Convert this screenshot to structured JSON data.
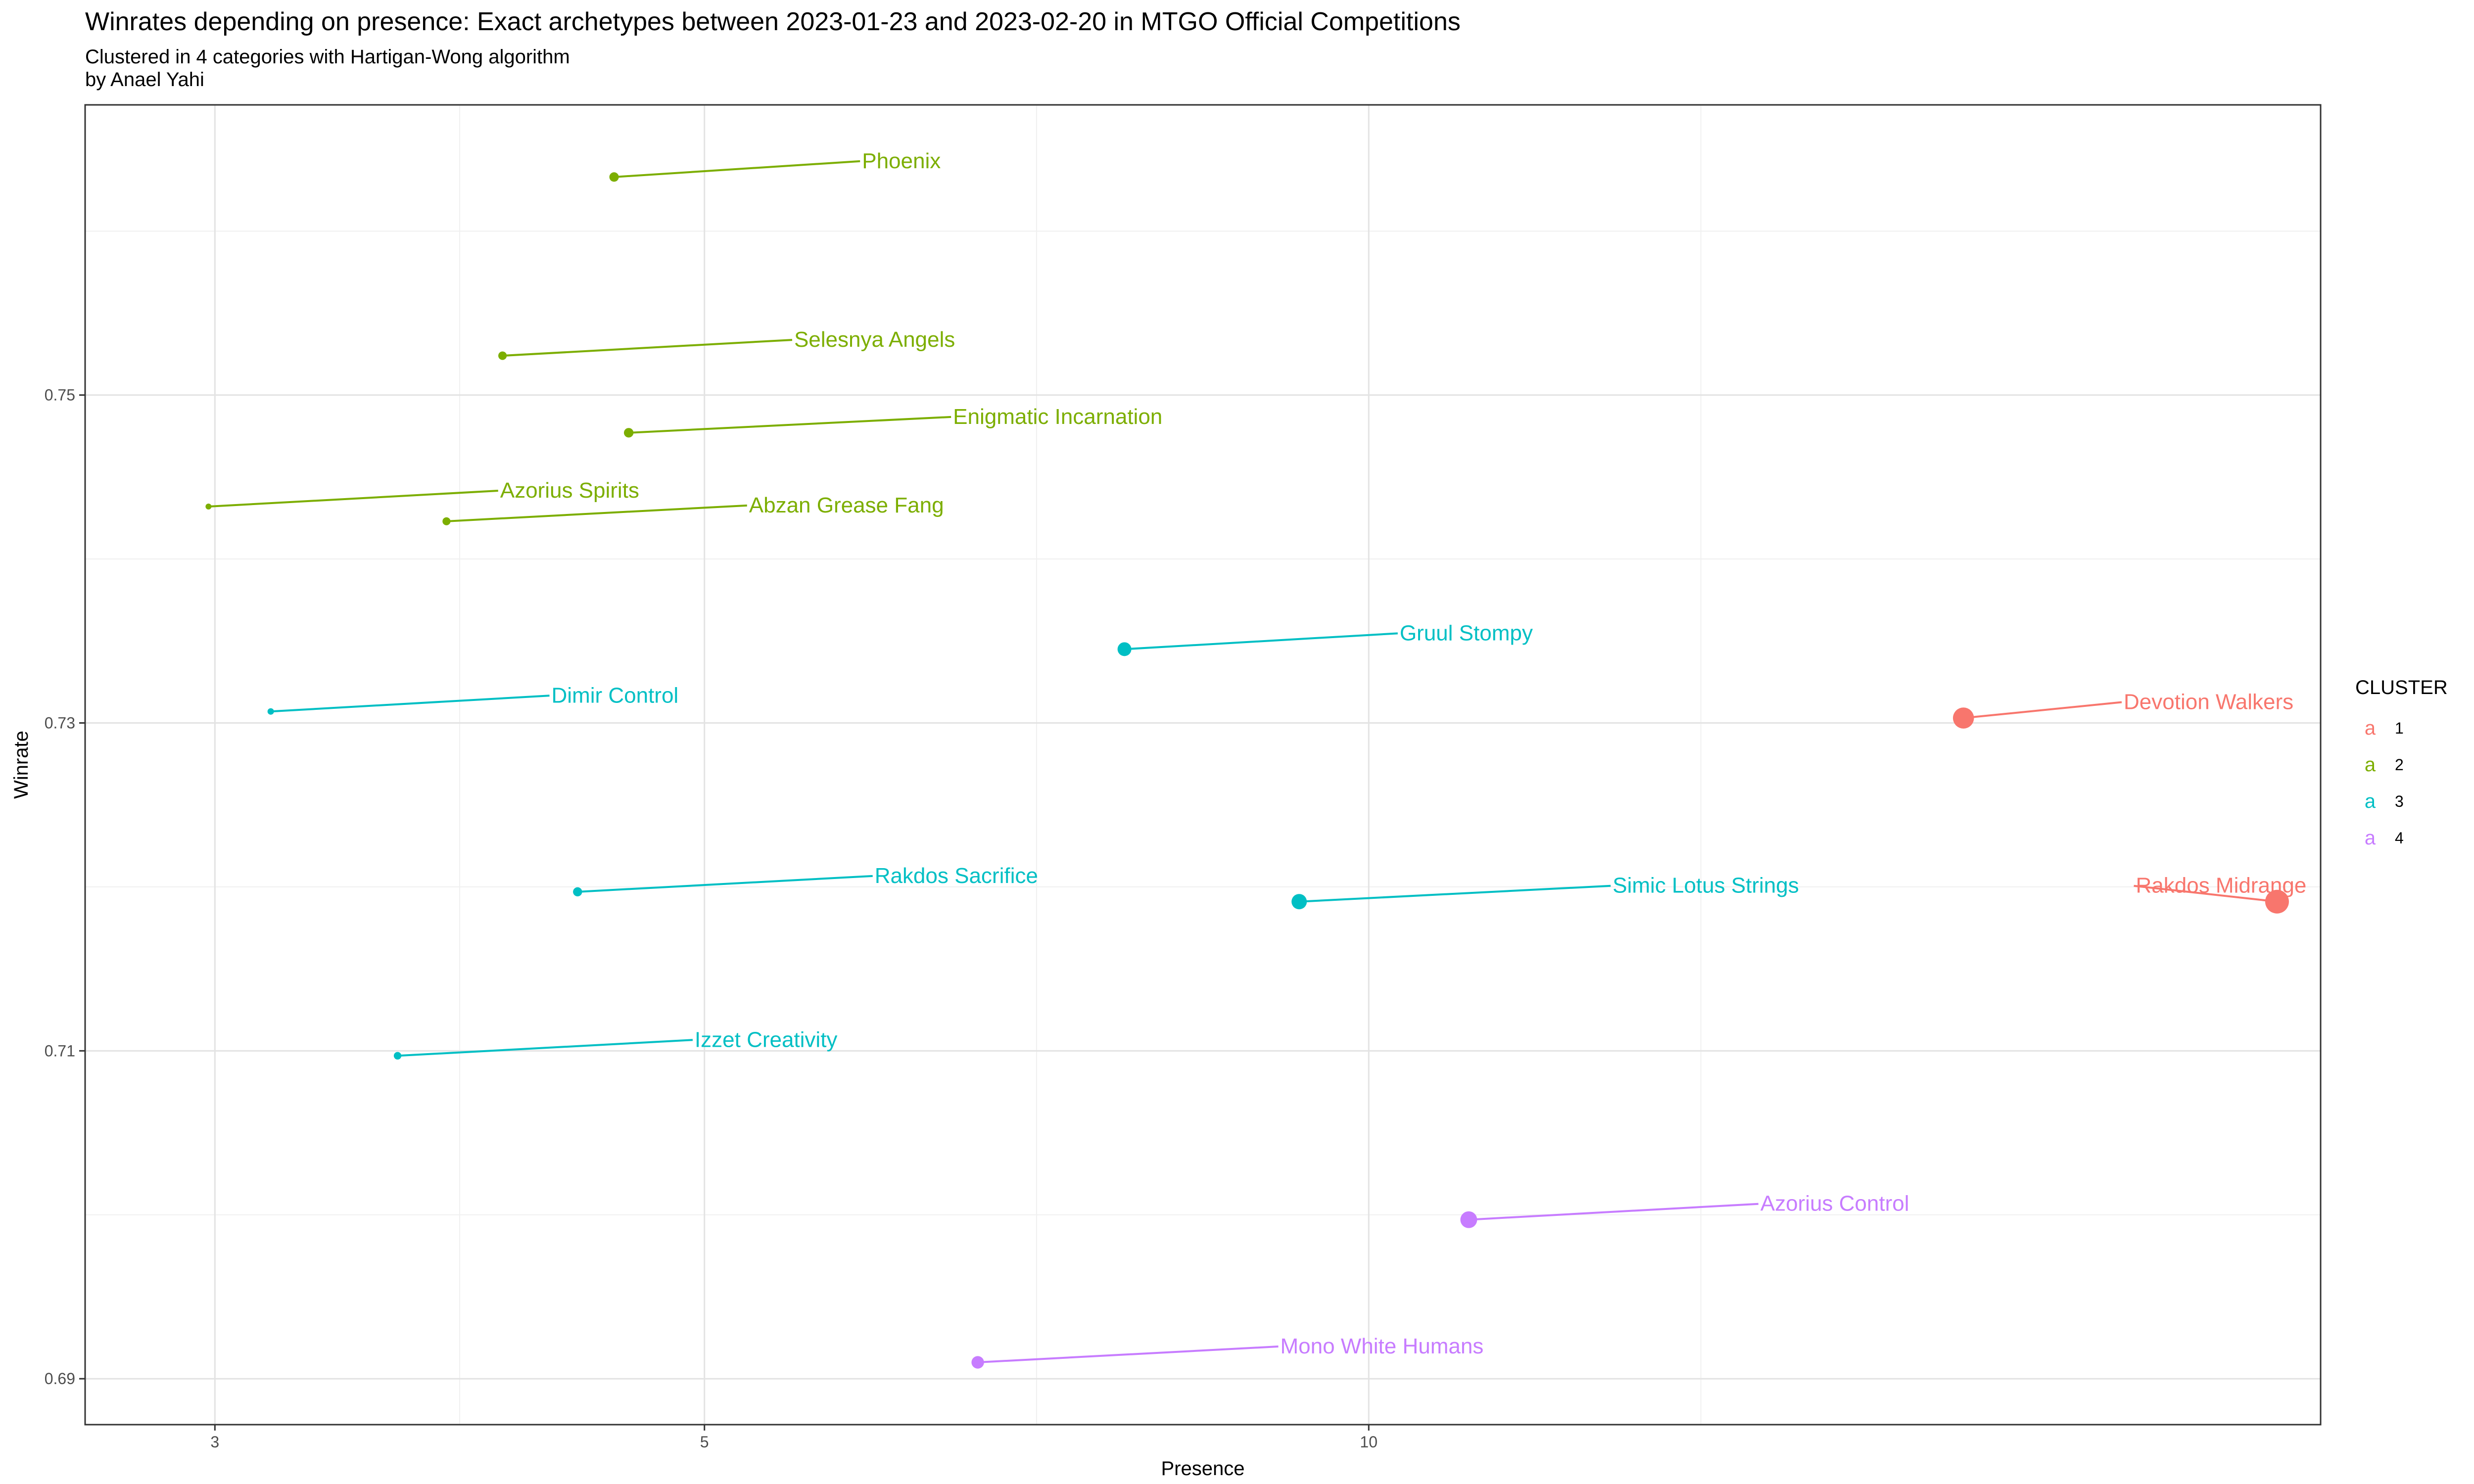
{
  "chart_data": {
    "type": "scatter",
    "title": "Winrates depending on presence: Exact archetypes  between 2023-01-23 and 2023-02-20 in MTGO Official Competitions",
    "subtitle_lines": [
      "Clustered in 4 categories with Hartigan-Wong algorithm",
      "by Anael Yahi"
    ],
    "xlabel": "Presence",
    "ylabel": "Winrate",
    "x_scale": "log",
    "xlim": [
      2.62,
      27.0
    ],
    "ylim": [
      0.6872,
      0.7677
    ],
    "x_ticks": [
      3,
      5,
      10
    ],
    "x_tick_labels": [
      "3",
      "5",
      "10"
    ],
    "y_ticks": [
      0.69,
      0.71,
      0.73,
      0.75
    ],
    "y_tick_labels": [
      "0.69",
      "0.71",
      "0.73",
      "0.75"
    ],
    "grid": true,
    "legend": {
      "title": "CLUSTER",
      "position": "right",
      "key_glyph": "a",
      "entries": [
        {
          "label": "1",
          "color": "#F8766D"
        },
        {
          "label": "2",
          "color": "#7CAE00"
        },
        {
          "label": "3",
          "color": "#00BFC4"
        },
        {
          "label": "4",
          "color": "#C77CFF"
        }
      ]
    },
    "points": [
      {
        "label": "Phoenix",
        "x": 4.55,
        "y": 0.7633,
        "cluster": "2"
      },
      {
        "label": "Selesnya Angels",
        "x": 4.05,
        "y": 0.7524,
        "cluster": "2"
      },
      {
        "label": "Enigmatic Incarnation",
        "x": 4.62,
        "y": 0.7477,
        "cluster": "2"
      },
      {
        "label": "Azorius Spirits",
        "x": 2.98,
        "y": 0.7432,
        "cluster": "2"
      },
      {
        "label": "Abzan Grease Fang",
        "x": 3.82,
        "y": 0.7423,
        "cluster": "2"
      },
      {
        "label": "Gruul Stompy",
        "x": 7.75,
        "y": 0.7345,
        "cluster": "3"
      },
      {
        "label": "Dimir Control",
        "x": 3.18,
        "y": 0.7307,
        "cluster": "3"
      },
      {
        "label": "Devotion Walkers",
        "x": 18.6,
        "y": 0.7303,
        "cluster": "1"
      },
      {
        "label": "Rakdos Sacrifice",
        "x": 4.38,
        "y": 0.7197,
        "cluster": "3"
      },
      {
        "label": "Simic Lotus Strings",
        "x": 9.3,
        "y": 0.7191,
        "cluster": "3"
      },
      {
        "label": "Rakdos Midrange",
        "x": 25.8,
        "y": 0.7191,
        "cluster": "1"
      },
      {
        "label": "Izzet Creativity",
        "x": 3.63,
        "y": 0.7097,
        "cluster": "3"
      },
      {
        "label": "Azorius Control",
        "x": 11.1,
        "y": 0.6997,
        "cluster": "4"
      },
      {
        "label": "Mono White Humans",
        "x": 6.65,
        "y": 0.691,
        "cluster": "4"
      }
    ]
  }
}
